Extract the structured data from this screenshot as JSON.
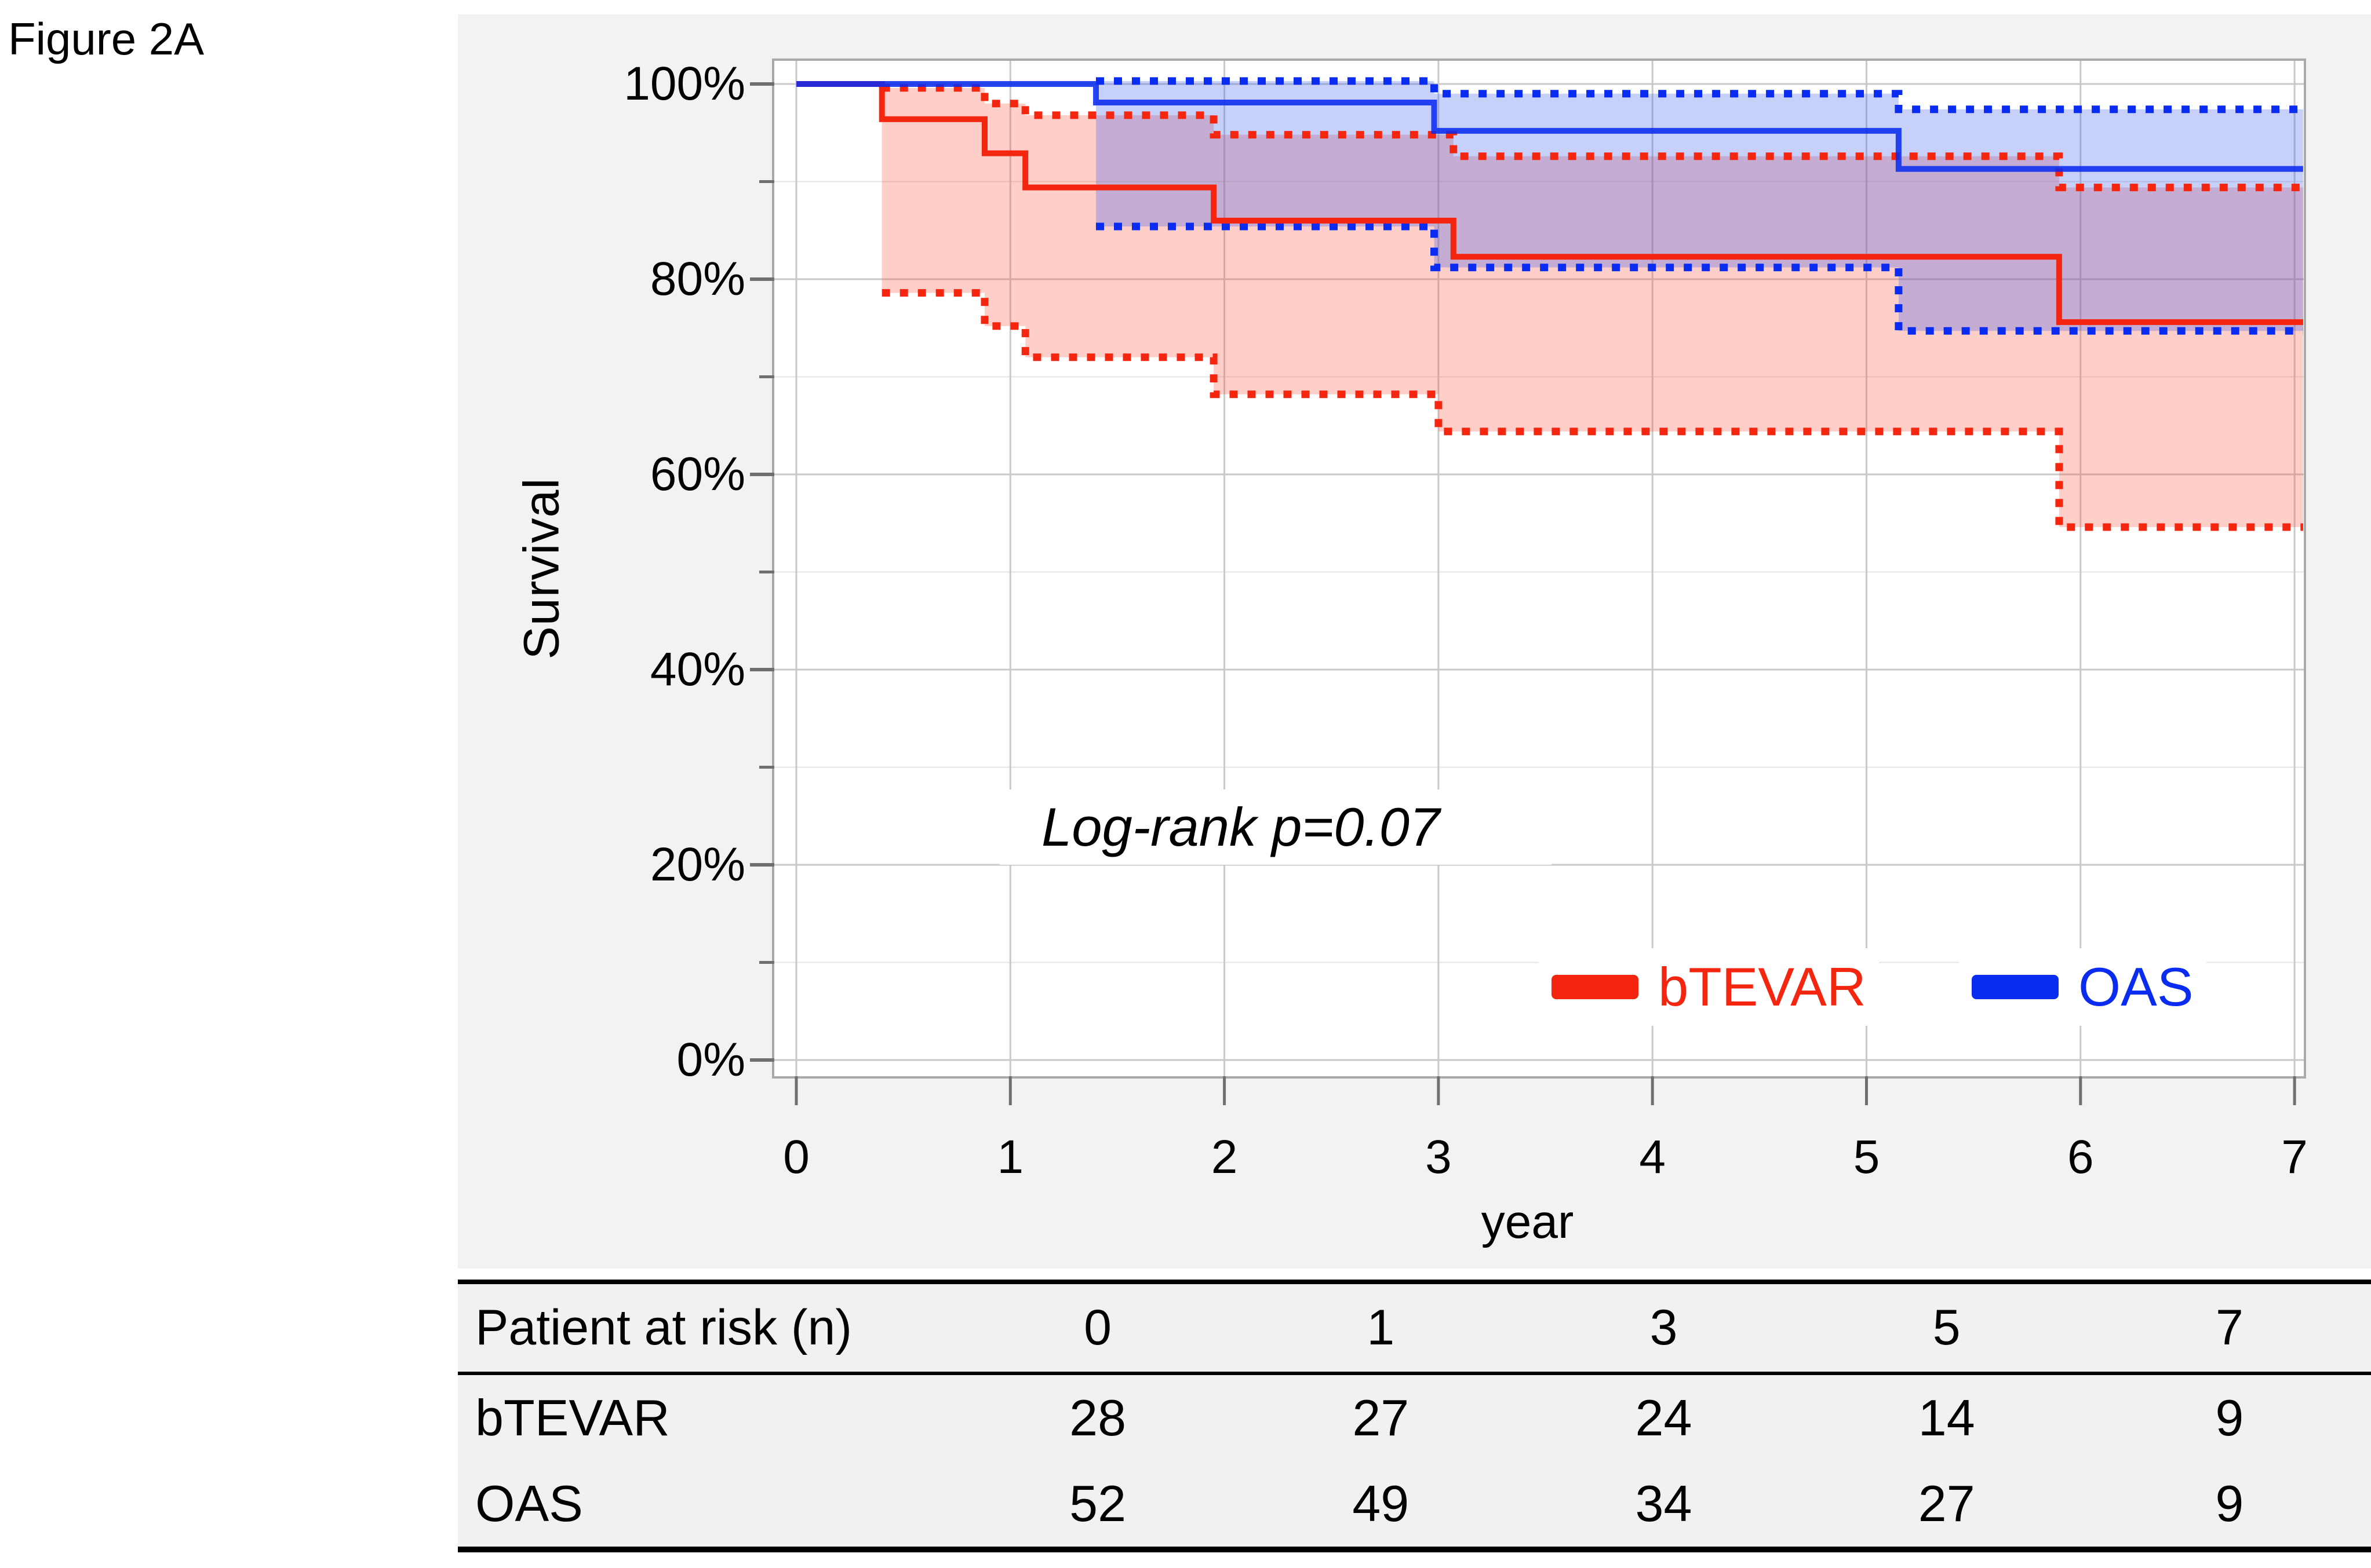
{
  "figure_label": "Figure 2A",
  "colors": {
    "red": "#F5260F",
    "blue": "#0A2BF0",
    "red_fill": "rgba(250,80,60,0.28)",
    "blue_fill": "rgba(50,85,235,0.28)",
    "panel_bg": "#F2F2F2",
    "plot_bg": "#FFFFFF",
    "frame": "#A9A9A9",
    "grid_major": "#C9C9C9",
    "grid_minor": "#E4E4E4",
    "tick": "#6F6F6F",
    "table_bg": "#F1F1F1",
    "text": "#000000"
  },
  "chart_data": {
    "type": "line",
    "subtype": "kaplan-meier-step-with-confidence-bands",
    "title": "",
    "xlabel": "year",
    "ylabel": "Survival",
    "xlim": [
      0,
      7.04
    ],
    "ylim": [
      0,
      100
    ],
    "x_ticks": [
      0,
      1,
      2,
      3,
      4,
      5,
      6,
      7
    ],
    "x_tick_labels": [
      "0",
      "1",
      "2",
      "3",
      "4",
      "5",
      "6",
      "7"
    ],
    "y_ticks_major": [
      0,
      20,
      40,
      60,
      80,
      100
    ],
    "y_tick_labels_major": [
      "0%",
      "20%",
      "40%",
      "60%",
      "80%",
      "100%"
    ],
    "y_ticks_minor": [
      10,
      30,
      50,
      70,
      90
    ],
    "grid": true,
    "legend_position": "inside-bottom-right",
    "annotation": "Log-rank p=0.07",
    "series": [
      {
        "name": "bTEVAR",
        "color": "#F5260F",
        "fill": "rgba(250,80,60,0.28)",
        "line_style": "solid-step",
        "ci_style": "dotted-step",
        "steps": [
          [
            0,
            100
          ],
          [
            0.4,
            96.4
          ],
          [
            0.88,
            92.9
          ],
          [
            1.07,
            89.4
          ],
          [
            1.95,
            86.0
          ],
          [
            3.07,
            82.3
          ],
          [
            5.9,
            75.6
          ]
        ],
        "ci_upper": [
          [
            0.4,
            99.6
          ],
          [
            0.88,
            98.0
          ],
          [
            1.07,
            96.8
          ],
          [
            1.95,
            94.8
          ],
          [
            3.07,
            92.6
          ],
          [
            5.9,
            89.4
          ]
        ],
        "ci_lower": [
          [
            0.4,
            78.6
          ],
          [
            0.88,
            75.2
          ],
          [
            1.07,
            72.0
          ],
          [
            1.95,
            68.2
          ],
          [
            3.0,
            64.4
          ],
          [
            5.9,
            54.6
          ]
        ],
        "end_x": 7.04
      },
      {
        "name": "OAS",
        "color": "#0A2BF0",
        "fill": "rgba(50,85,235,0.28)",
        "line_style": "solid-step",
        "ci_style": "dotted-step",
        "steps": [
          [
            0,
            100
          ],
          [
            1.4,
            98.1
          ],
          [
            2.98,
            95.2
          ],
          [
            5.15,
            91.3
          ]
        ],
        "ci_upper": [
          [
            1.4,
            100.3
          ],
          [
            2.98,
            99.0
          ],
          [
            5.15,
            97.4
          ]
        ],
        "ci_lower": [
          [
            1.4,
            85.4
          ],
          [
            2.98,
            81.2
          ],
          [
            5.15,
            74.7
          ]
        ],
        "end_x": 7.04
      }
    ]
  },
  "legend": {
    "items": [
      {
        "label": "bTEVAR",
        "color": "#F5260F"
      },
      {
        "label": "OAS",
        "color": "#0A2BF0"
      }
    ]
  },
  "risk_table": {
    "title": "Patient at risk (n)",
    "time_columns": [
      "0",
      "1",
      "3",
      "5",
      "7"
    ],
    "rows": [
      {
        "label": "bTEVAR",
        "values": [
          "28",
          "27",
          "24",
          "14",
          "9"
        ]
      },
      {
        "label": "OAS",
        "values": [
          "52",
          "49",
          "34",
          "27",
          "9"
        ]
      }
    ]
  }
}
